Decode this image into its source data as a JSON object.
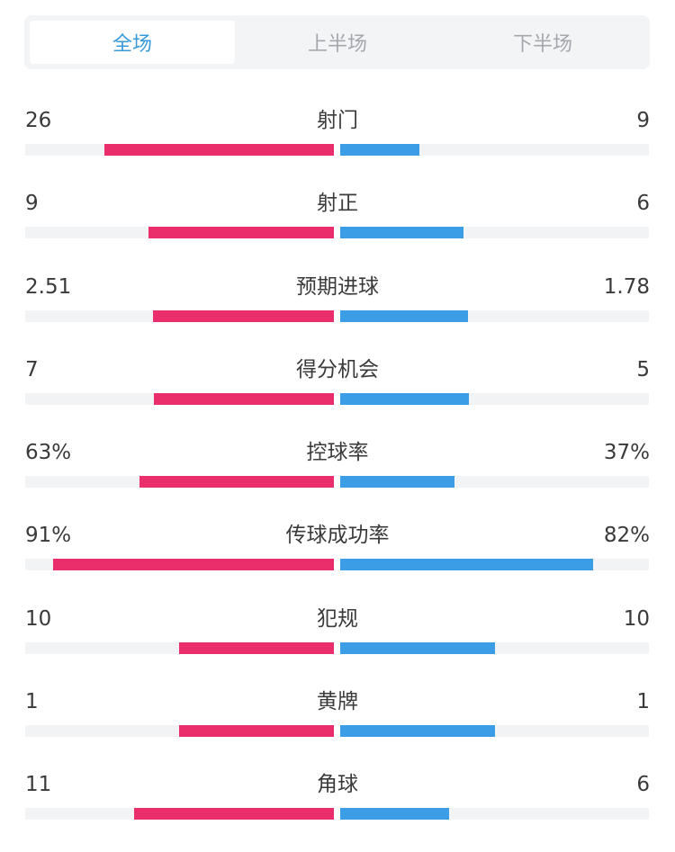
{
  "tabs": [
    {
      "label": "全场",
      "active": true
    },
    {
      "label": "上半场",
      "active": false
    },
    {
      "label": "下半场",
      "active": false
    }
  ],
  "colors": {
    "home_bar": "#ea2e6c",
    "away_bar": "#3b9de6",
    "track": "#f2f3f5",
    "active_tab": "#3a9ad9"
  },
  "stats": [
    {
      "label": "射门",
      "left": "26",
      "right": "9",
      "left_share": 0.743,
      "right_share": 0.257
    },
    {
      "label": "射正",
      "left": "9",
      "right": "6",
      "left_share": 0.6,
      "right_share": 0.4
    },
    {
      "label": "预期进球",
      "left": "2.51",
      "right": "1.78",
      "left_share": 0.585,
      "right_share": 0.415
    },
    {
      "label": "得分机会",
      "left": "7",
      "right": "5",
      "left_share": 0.583,
      "right_share": 0.417
    },
    {
      "label": "控球率",
      "left": "63%",
      "right": "37%",
      "left_share": 0.63,
      "right_share": 0.37
    },
    {
      "label": "传球成功率",
      "left": "91%",
      "right": "82%",
      "left_share": 0.91,
      "right_share": 0.82
    },
    {
      "label": "犯规",
      "left": "10",
      "right": "10",
      "left_share": 0.5,
      "right_share": 0.5
    },
    {
      "label": "黄牌",
      "left": "1",
      "right": "1",
      "left_share": 0.5,
      "right_share": 0.5
    },
    {
      "label": "角球",
      "left": "11",
      "right": "6",
      "left_share": 0.647,
      "right_share": 0.353
    }
  ]
}
